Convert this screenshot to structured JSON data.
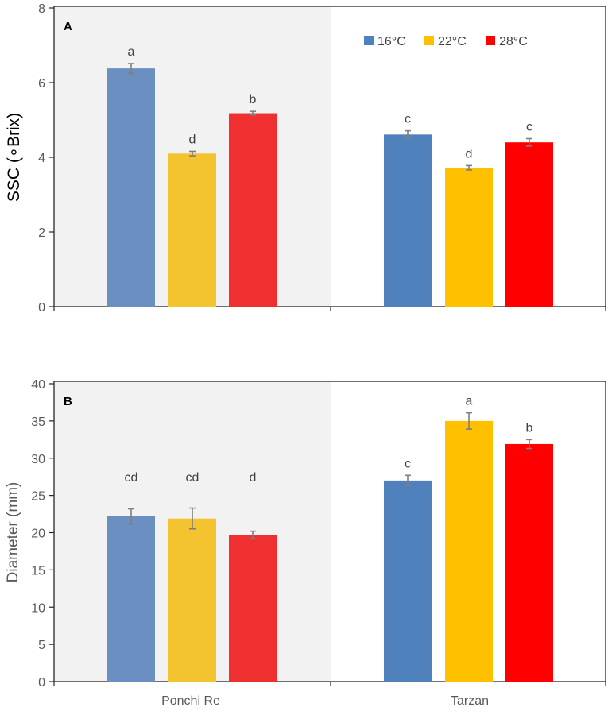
{
  "colors": {
    "shade": "#f2f2f2",
    "axis": "#262626",
    "tick_text": "#595959",
    "error_bar": "#7f7f7f",
    "frame": "#262626"
  },
  "categories": [
    "Ponchi Re",
    "Tarzan"
  ],
  "legend": {
    "position": "top-right",
    "items": [
      {
        "label": "16°C",
        "color": "#4f81bd"
      },
      {
        "label": "22°C",
        "color": "#ffc000"
      },
      {
        "label": "28°C",
        "color": "#ff0000"
      }
    ]
  },
  "chart_data": [
    {
      "type": "bar",
      "panel_label": "A",
      "ylabel": "SSC (∘Brix)",
      "xlabel": "",
      "ylim": [
        0,
        8
      ],
      "yticks": [
        0,
        2,
        4,
        6,
        8
      ],
      "categories": [
        "Ponchi Re",
        "Tarzan"
      ],
      "shaded_category": "Ponchi Re",
      "show_category_labels": false,
      "series": [
        {
          "name": "16°C",
          "values": [
            6.38,
            4.61
          ],
          "errors": [
            0.13,
            0.1
          ],
          "letters": [
            "a",
            "c"
          ],
          "colors": [
            "#6a8fc0",
            "#4f81bd"
          ]
        },
        {
          "name": "22°C",
          "values": [
            4.1,
            3.72
          ],
          "errors": [
            0.06,
            0.06
          ],
          "letters": [
            "d",
            "d"
          ],
          "colors": [
            "#f4c430",
            "#ffc000"
          ]
        },
        {
          "name": "28°C",
          "values": [
            5.18,
            4.4
          ],
          "errors": [
            0.05,
            0.1
          ],
          "letters": [
            "b",
            "c"
          ],
          "colors": [
            "#f03030",
            "#ff0000"
          ]
        }
      ]
    },
    {
      "type": "bar",
      "panel_label": "B",
      "ylabel": "Diameter (mm)",
      "xlabel": "",
      "ylim": [
        0,
        40
      ],
      "yticks": [
        0,
        5,
        10,
        15,
        20,
        25,
        30,
        35,
        40
      ],
      "categories": [
        "Ponchi Re",
        "Tarzan"
      ],
      "shaded_category": "Ponchi Re",
      "show_category_labels": true,
      "series": [
        {
          "name": "16°C",
          "values": [
            22.2,
            27.0
          ],
          "errors": [
            1.0,
            0.7
          ],
          "letters": [
            "cd",
            "c"
          ],
          "colors": [
            "#6a8fc0",
            "#4f81bd"
          ]
        },
        {
          "name": "22°C",
          "values": [
            21.9,
            35.0
          ],
          "errors": [
            1.4,
            1.1
          ],
          "letters": [
            "cd",
            "a"
          ],
          "colors": [
            "#f4c430",
            "#ffc000"
          ]
        },
        {
          "name": "28°C",
          "values": [
            19.7,
            31.9
          ],
          "errors": [
            0.5,
            0.6
          ],
          "letters": [
            "d",
            "b"
          ],
          "colors": [
            "#f03030",
            "#ff0000"
          ]
        }
      ]
    }
  ]
}
